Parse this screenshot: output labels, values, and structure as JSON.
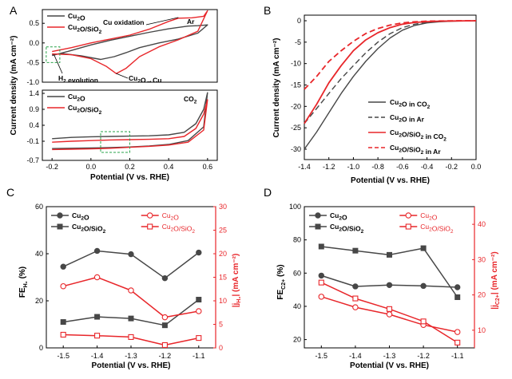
{
  "panels": {
    "A": "A",
    "B": "B",
    "C": "C",
    "D": "D"
  },
  "colors": {
    "red": "#e8262a",
    "gray": "#474747",
    "green": "#2aa34a",
    "black": "#000000"
  },
  "chart_data": [
    {
      "id": "A",
      "type": "line",
      "title": "",
      "xlabel": "Potential (V vs. RHE)",
      "ylabel": "Current density (mA cm⁻²)",
      "xlim": [
        -0.25,
        0.65
      ],
      "x_ticks": [
        "-0.2",
        "0.0",
        "0.2",
        "0.4",
        "0.6"
      ],
      "subplots": [
        {
          "condition": "Ar",
          "ylim": [
            -1.0,
            0.85
          ],
          "y_ticks": [
            "0.5",
            "0.0",
            "-0.5",
            "-1.0"
          ],
          "legend": [
            "Cu₂O",
            "Cu₂O/SiO₂"
          ],
          "annotations": {
            "oxidation": "Cu oxidation",
            "h2": "H₂ evolution",
            "reduction": "Cu₂O→Cu"
          },
          "series": [
            {
              "name": "Cu₂O",
              "color": "gray",
              "x": [
                -0.2,
                -0.12,
                0.0,
                0.1,
                0.2,
                0.3,
                0.4,
                0.5,
                0.55,
                0.6,
                0.55,
                0.45,
                0.35,
                0.25,
                0.18,
                0.12,
                0.05,
                -0.05,
                -0.15,
                -0.2
              ],
              "y": [
                -0.32,
                -0.22,
                -0.05,
                0.07,
                0.17,
                0.27,
                0.36,
                0.43,
                0.44,
                0.46,
                0.25,
                0.1,
                0.0,
                -0.12,
                -0.25,
                -0.35,
                -0.42,
                -0.33,
                -0.27,
                -0.3
              ]
            },
            {
              "name": "Cu₂O/SiO₂",
              "color": "red",
              "x": [
                -0.2,
                -0.1,
                0.0,
                0.1,
                0.2,
                0.3,
                0.4,
                0.45,
                0.52,
                0.58,
                0.6,
                0.55,
                0.45,
                0.35,
                0.25,
                0.18,
                0.13,
                0.08,
                0.0,
                -0.1,
                -0.2
              ],
              "y": [
                -0.22,
                -0.12,
                0.0,
                0.1,
                0.2,
                0.35,
                0.55,
                0.63,
                0.64,
                0.68,
                0.82,
                0.3,
                0.08,
                -0.1,
                -0.35,
                -0.65,
                -0.78,
                -0.6,
                -0.4,
                -0.3,
                -0.28
              ]
            }
          ]
        },
        {
          "condition": "CO₂",
          "ylim": [
            -0.7,
            1.5
          ],
          "y_ticks": [
            "1.4",
            "0.9",
            "0.4",
            "-0.1",
            "-0.7"
          ],
          "legend": [
            "Cu₂O",
            "Cu₂O/SiO₂"
          ],
          "series": [
            {
              "name": "Cu₂O",
              "color": "gray",
              "x": [
                -0.2,
                -0.1,
                0.0,
                0.1,
                0.2,
                0.3,
                0.4,
                0.48,
                0.54,
                0.58,
                0.6,
                0.58,
                0.5,
                0.4,
                0.3,
                0.2,
                0.1,
                0.0,
                -0.1,
                -0.2
              ],
              "y": [
                -0.02,
                0.02,
                0.04,
                0.05,
                0.06,
                0.07,
                0.1,
                0.18,
                0.45,
                0.9,
                1.42,
                0.35,
                -0.08,
                -0.2,
                -0.25,
                -0.28,
                -0.3,
                -0.31,
                -0.32,
                -0.33
              ]
            },
            {
              "name": "Cu₂O/SiO₂",
              "color": "red",
              "x": [
                -0.2,
                -0.1,
                0.0,
                0.1,
                0.2,
                0.3,
                0.4,
                0.48,
                0.54,
                0.58,
                0.6,
                0.58,
                0.5,
                0.4,
                0.3,
                0.2,
                0.1,
                0.0,
                -0.1,
                -0.2
              ],
              "y": [
                -0.13,
                -0.1,
                -0.08,
                -0.06,
                -0.05,
                -0.04,
                -0.02,
                0.05,
                0.3,
                0.75,
                1.2,
                0.25,
                -0.13,
                -0.22,
                -0.26,
                -0.29,
                -0.32,
                -0.34,
                -0.35,
                -0.36
              ]
            }
          ]
        }
      ]
    },
    {
      "id": "B",
      "type": "line",
      "title": "",
      "xlabel": "Potential (V vs. RHE)",
      "ylabel": "Current density (mA cm⁻²)",
      "xlim": [
        -1.4,
        0.0
      ],
      "ylim": [
        -30,
        0
      ],
      "x_ticks": [
        "-1.4",
        "-1.2",
        "-1.0",
        "-0.8",
        "-0.6",
        "-0.4",
        "-0.2",
        "0.0"
      ],
      "y_ticks": [
        "0",
        "-5",
        "-10",
        "-15",
        "-20",
        "-25",
        "-30"
      ],
      "legend": [
        "Cu₂O in CO₂",
        "Cu₂O in Ar",
        "Cu₂O/SiO₂  in CO₂",
        "Cu₂O/SiO₂  in Ar"
      ],
      "series": [
        {
          "name": "Cu₂O in CO₂",
          "color": "gray",
          "dash": false,
          "x": [
            -1.4,
            -1.3,
            -1.2,
            -1.1,
            -1.0,
            -0.9,
            -0.8,
            -0.7,
            -0.6,
            -0.5,
            -0.4,
            -0.3,
            -0.2,
            -0.1,
            0.0
          ],
          "y": [
            -30,
            -26,
            -21.5,
            -17,
            -13,
            -9.5,
            -6.5,
            -4,
            -2.2,
            -1.1,
            -0.5,
            -0.25,
            -0.1,
            -0.05,
            -0.02
          ]
        },
        {
          "name": "Cu₂O in Ar",
          "color": "gray",
          "dash": true,
          "x": [
            -1.4,
            -1.3,
            -1.2,
            -1.1,
            -1.0,
            -0.9,
            -0.8,
            -0.7,
            -0.6,
            -0.5,
            -0.4,
            -0.3,
            -0.2,
            -0.1,
            0.0
          ],
          "y": [
            -24,
            -20.5,
            -17,
            -13.5,
            -10.5,
            -7.5,
            -5,
            -3,
            -1.6,
            -0.8,
            -0.35,
            -0.15,
            -0.08,
            -0.03,
            -0.01
          ]
        },
        {
          "name": "Cu₂O/SiO₂  in CO₂",
          "color": "red",
          "dash": false,
          "x": [
            -1.4,
            -1.3,
            -1.2,
            -1.1,
            -1.0,
            -0.9,
            -0.8,
            -0.7,
            -0.6,
            -0.5,
            -0.4,
            -0.3,
            -0.2,
            -0.1,
            0.0
          ],
          "y": [
            -24,
            -19.5,
            -14.5,
            -10.5,
            -7,
            -4.5,
            -2.8,
            -1.6,
            -0.8,
            -0.4,
            -0.2,
            -0.1,
            -0.05,
            -0.02,
            0.0
          ]
        },
        {
          "name": "Cu₂O/SiO₂  in Ar",
          "color": "red",
          "dash": true,
          "x": [
            -1.4,
            -1.3,
            -1.2,
            -1.1,
            -1.0,
            -0.9,
            -0.8,
            -0.7,
            -0.6,
            -0.5,
            -0.4,
            -0.3,
            -0.2,
            -0.1,
            0.0
          ],
          "y": [
            -16,
            -13,
            -9.5,
            -7,
            -4.8,
            -3,
            -1.8,
            -1,
            -0.5,
            -0.25,
            -0.1,
            -0.05,
            -0.02,
            0.0,
            0.0
          ]
        }
      ]
    },
    {
      "id": "C",
      "type": "line",
      "title": "",
      "xlabel": "Potential (V vs. RHE)",
      "ylabel": "FE(H₂) (%)",
      "ylabel_main": "FE",
      "ylabel_sub": "H₂",
      "ylabel_unit": "(%)",
      "y2label": "|j(H₂)| (mA cm⁻²)",
      "y2label_main": "|j",
      "y2label_sub": "H₂",
      "y2label_unit": "| (mA cm⁻²)",
      "categories": [
        "-1.5",
        "-1.4",
        "-1.3",
        "-1.2",
        "-1.1"
      ],
      "x_values": [
        -1.5,
        -1.4,
        -1.3,
        -1.2,
        -1.1
      ],
      "xlim": [
        -1.55,
        -1.05
      ],
      "ylim": [
        0,
        60
      ],
      "y_ticks": [
        "0",
        "20",
        "40",
        "60"
      ],
      "y2lim": [
        0,
        30
      ],
      "y2_ticks": [
        "0",
        "5",
        "10",
        "15",
        "20",
        "25",
        "30"
      ],
      "legend_left": [
        "Cu₂O",
        "Cu₂O/SiO₂"
      ],
      "legend_right": [
        "Cu₂O",
        "Cu₂O/SiO₂"
      ],
      "series": [
        {
          "name": "Cu₂O FE",
          "axis": "left",
          "color": "gray",
          "marker": "circle",
          "values": [
            34.5,
            41.2,
            39.8,
            29.6,
            40.5
          ]
        },
        {
          "name": "Cu₂O/SiO₂ FE",
          "axis": "left",
          "color": "gray",
          "marker": "square",
          "values": [
            11.0,
            13.2,
            12.5,
            9.6,
            20.5
          ]
        },
        {
          "name": "Cu₂O |j|",
          "axis": "right",
          "color": "red",
          "marker": "circle-open",
          "values": [
            13.1,
            15.0,
            12.2,
            6.5,
            7.8
          ]
        },
        {
          "name": "Cu₂O/SiO₂ |j|",
          "axis": "right",
          "color": "red",
          "marker": "square-open",
          "values": [
            2.8,
            2.6,
            2.3,
            0.6,
            2.1
          ]
        }
      ]
    },
    {
      "id": "D",
      "type": "line",
      "title": "",
      "xlabel": "Potential (V vs. RHE)",
      "ylabel": "FE(C2+) (%)",
      "ylabel_main": "FE",
      "ylabel_sub": "C2+",
      "ylabel_unit": "(%)",
      "y2label": "|j(C2+)| (mA cm⁻²)",
      "y2label_main": "|j",
      "y2label_sub": "C2+",
      "y2label_unit": "| (mA cm⁻²)",
      "categories": [
        "-1.5",
        "-1.4",
        "-1.3",
        "-1.2",
        "-1.1"
      ],
      "x_values": [
        -1.5,
        -1.4,
        -1.3,
        -1.2,
        -1.1
      ],
      "xlim": [
        -1.55,
        -1.05
      ],
      "ylim": [
        15,
        100
      ],
      "y_ticks": [
        "20",
        "40",
        "60",
        "80",
        "100"
      ],
      "y2lim": [
        5,
        45
      ],
      "y2_ticks": [
        "10",
        "20",
        "30",
        "40"
      ],
      "legend_left": [
        "Cu₂O",
        "Cu₂O/SiO₂"
      ],
      "legend_right": [
        "Cu₂O",
        "Cu₂O/SiO₂"
      ],
      "series": [
        {
          "name": "Cu₂O FE",
          "axis": "left",
          "color": "gray",
          "marker": "circle",
          "values": [
            58.5,
            52.0,
            52.8,
            52.3,
            51.5
          ]
        },
        {
          "name": "Cu₂O/SiO₂ FE",
          "axis": "left",
          "color": "gray",
          "marker": "square",
          "values": [
            76.0,
            73.5,
            71.0,
            75.0,
            45.5
          ]
        },
        {
          "name": "Cu₂O |j|",
          "axis": "right",
          "color": "red",
          "marker": "circle-open",
          "values": [
            19.5,
            16.5,
            14.5,
            11.5,
            9.5
          ]
        },
        {
          "name": "Cu₂O/SiO₂ |j|",
          "axis": "right",
          "color": "red",
          "marker": "square-open",
          "values": [
            23.5,
            19.0,
            16.0,
            12.5,
            6.5
          ]
        }
      ]
    }
  ]
}
